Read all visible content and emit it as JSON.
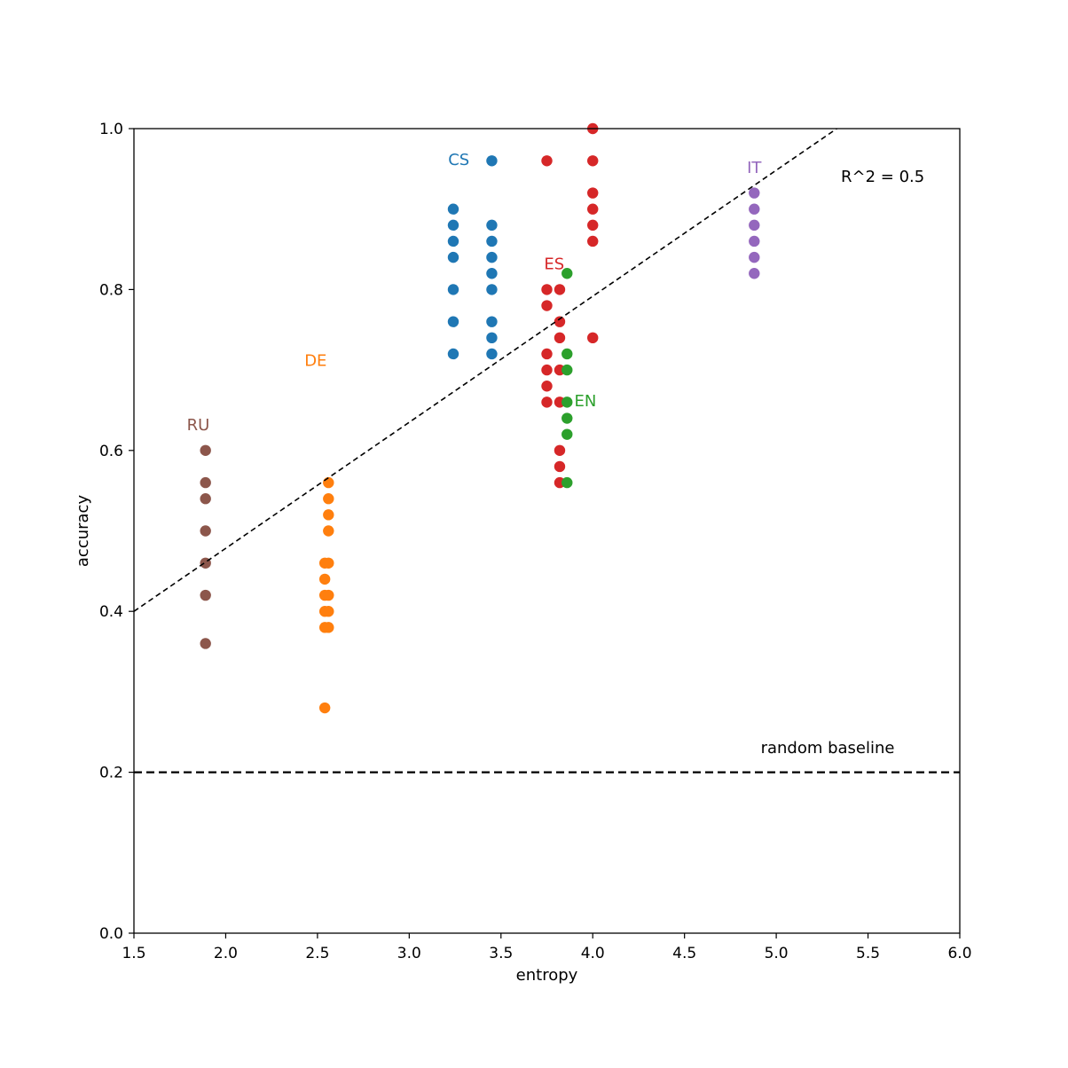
{
  "chart_data": {
    "type": "scatter",
    "title": "",
    "xlabel": "entropy",
    "ylabel": "accuracy",
    "xlim": [
      1.5,
      6.0
    ],
    "ylim": [
      0.0,
      1.0
    ],
    "x_ticks": [
      "1.5",
      "2.0",
      "2.5",
      "3.0",
      "3.5",
      "4.0",
      "4.5",
      "5.0",
      "5.5",
      "6.0"
    ],
    "y_ticks": [
      "0.0",
      "0.2",
      "0.4",
      "0.6",
      "0.8",
      "1.0"
    ],
    "grid": false,
    "series": [
      {
        "name": "RU",
        "color": "#8c564b",
        "label_pos": [
          1.85,
          0.625
        ],
        "points": [
          [
            1.89,
            0.6
          ],
          [
            1.89,
            0.56
          ],
          [
            1.89,
            0.54
          ],
          [
            1.89,
            0.5
          ],
          [
            1.89,
            0.46
          ],
          [
            1.89,
            0.42
          ],
          [
            1.89,
            0.36
          ]
        ]
      },
      {
        "name": "DE",
        "color": "#ff7f0e",
        "label_pos": [
          2.49,
          0.705
        ],
        "points": [
          [
            2.56,
            0.56
          ],
          [
            2.56,
            0.54
          ],
          [
            2.56,
            0.52
          ],
          [
            2.56,
            0.5
          ],
          [
            2.54,
            0.46
          ],
          [
            2.56,
            0.46
          ],
          [
            2.54,
            0.44
          ],
          [
            2.54,
            0.42
          ],
          [
            2.56,
            0.42
          ],
          [
            2.54,
            0.4
          ],
          [
            2.56,
            0.4
          ],
          [
            2.54,
            0.38
          ],
          [
            2.56,
            0.38
          ],
          [
            2.54,
            0.28
          ]
        ]
      },
      {
        "name": "CS",
        "color": "#1f77b4",
        "label_pos": [
          3.27,
          0.955
        ],
        "points": [
          [
            3.24,
            0.9
          ],
          [
            3.24,
            0.88
          ],
          [
            3.24,
            0.86
          ],
          [
            3.24,
            0.84
          ],
          [
            3.24,
            0.8
          ],
          [
            3.24,
            0.76
          ],
          [
            3.24,
            0.72
          ],
          [
            3.45,
            0.96
          ],
          [
            3.45,
            0.88
          ],
          [
            3.45,
            0.86
          ],
          [
            3.45,
            0.84
          ],
          [
            3.45,
            0.82
          ],
          [
            3.45,
            0.8
          ],
          [
            3.45,
            0.76
          ],
          [
            3.45,
            0.74
          ],
          [
            3.45,
            0.72
          ]
        ]
      },
      {
        "name": "ES",
        "color": "#d62728",
        "label_pos": [
          3.79,
          0.825
        ],
        "points": [
          [
            3.75,
            0.96
          ],
          [
            3.75,
            0.8
          ],
          [
            3.75,
            0.78
          ],
          [
            3.75,
            0.72
          ],
          [
            3.75,
            0.7
          ],
          [
            3.75,
            0.68
          ],
          [
            3.75,
            0.66
          ],
          [
            3.82,
            0.8
          ],
          [
            3.82,
            0.76
          ],
          [
            3.82,
            0.74
          ],
          [
            3.82,
            0.7
          ],
          [
            3.82,
            0.66
          ],
          [
            3.82,
            0.6
          ],
          [
            3.82,
            0.58
          ],
          [
            3.82,
            0.56
          ],
          [
            4.0,
            1.0
          ],
          [
            4.0,
            0.96
          ],
          [
            4.0,
            0.92
          ],
          [
            4.0,
            0.9
          ],
          [
            4.0,
            0.88
          ],
          [
            4.0,
            0.86
          ],
          [
            4.0,
            0.74
          ]
        ]
      },
      {
        "name": "EN",
        "color": "#2ca02c",
        "label_pos": [
          3.96,
          0.655
        ],
        "points": [
          [
            3.86,
            0.82
          ],
          [
            3.86,
            0.72
          ],
          [
            3.86,
            0.7
          ],
          [
            3.86,
            0.66
          ],
          [
            3.86,
            0.64
          ],
          [
            3.86,
            0.62
          ],
          [
            3.86,
            0.56
          ]
        ]
      },
      {
        "name": "IT",
        "color": "#9467bd",
        "label_pos": [
          4.88,
          0.945
        ],
        "points": [
          [
            4.88,
            0.92
          ],
          [
            4.88,
            0.9
          ],
          [
            4.88,
            0.88
          ],
          [
            4.88,
            0.86
          ],
          [
            4.88,
            0.84
          ],
          [
            4.88,
            0.82
          ]
        ]
      }
    ],
    "fit_line": {
      "x": [
        1.5,
        5.33
      ],
      "y": [
        0.4,
        1.0
      ]
    },
    "baseline": {
      "y": 0.2,
      "label": "random baseline",
      "label_pos": [
        5.28,
        0.224
      ]
    },
    "r2_text": "R^2 = 0.5",
    "r2_pos": [
      5.58,
      0.934
    ]
  }
}
